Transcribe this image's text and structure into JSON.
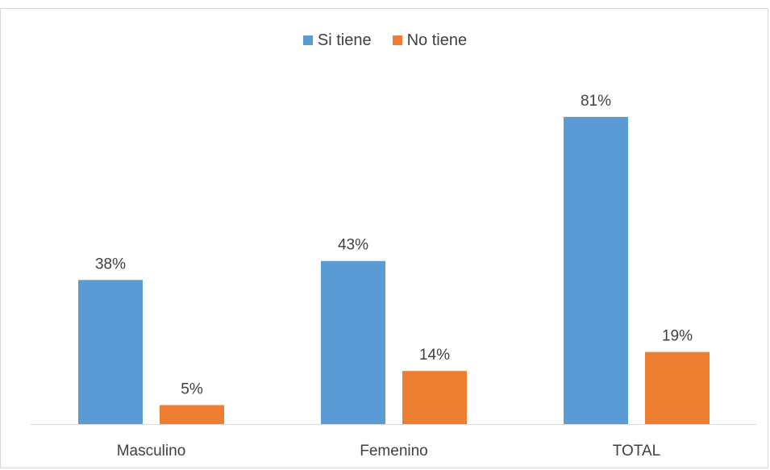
{
  "chart_data": {
    "type": "bar",
    "categories": [
      "Masculino",
      "Femenino",
      "TOTAL"
    ],
    "series": [
      {
        "name": "Si tiene",
        "values": [
          38,
          43,
          81
        ],
        "labels": [
          "38%",
          "43%",
          "81%"
        ],
        "color": "#5b9bd5"
      },
      {
        "name": "No tiene",
        "values": [
          5,
          14,
          19
        ],
        "labels": [
          "5%",
          "14%",
          "19%"
        ],
        "color": "#ed7d31"
      }
    ],
    "ylim": [
      0,
      100
    ],
    "grid": false,
    "legend": "top-center",
    "axis_color": "#d9d9d9"
  }
}
